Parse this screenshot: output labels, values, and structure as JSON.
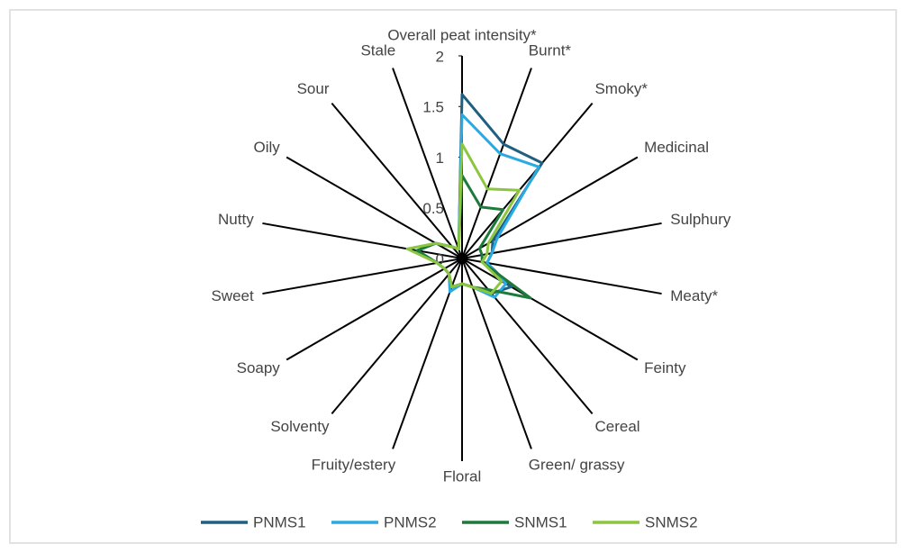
{
  "chart_data": {
    "type": "radar",
    "categories": [
      "Overall peat intensity*",
      "Burnt*",
      "Smoky*",
      "Medicinal",
      "Sulphury",
      "Meaty*",
      "Feinty",
      "Cereal",
      "Green/ grassy",
      "Floral",
      "Fruity/estery",
      "Solventy",
      "Soapy",
      "Sweet",
      "Nutty",
      "Oily",
      "Sour",
      "Stale"
    ],
    "rlim": [
      0,
      2
    ],
    "rticks": [
      0,
      0.5,
      1,
      1.5,
      2
    ],
    "legend": "bottom",
    "series": [
      {
        "name": "PNMS1",
        "color": "#1f5f80",
        "values": [
          1.62,
          1.2,
          1.23,
          0.35,
          0.3,
          0.25,
          0.56,
          0.45,
          0.3,
          0.25,
          0.3,
          0.2,
          0.2,
          0.25,
          0.45,
          0.3,
          0.15,
          0.1
        ]
      },
      {
        "name": "PNMS2",
        "color": "#2aaae2",
        "values": [
          1.42,
          1.1,
          1.18,
          0.4,
          0.3,
          0.25,
          0.5,
          0.5,
          0.3,
          0.25,
          0.35,
          0.2,
          0.2,
          0.25,
          0.45,
          0.3,
          0.15,
          0.1
        ]
      },
      {
        "name": "SNMS1",
        "color": "#1e7a3a",
        "values": [
          0.82,
          0.54,
          0.63,
          0.2,
          0.2,
          0.2,
          0.78,
          0.4,
          0.3,
          0.25,
          0.3,
          0.2,
          0.2,
          0.25,
          0.45,
          0.3,
          0.15,
          0.1
        ]
      },
      {
        "name": "SNMS2",
        "color": "#8cc63f",
        "values": [
          1.13,
          0.73,
          0.88,
          0.3,
          0.25,
          0.2,
          0.45,
          0.45,
          0.3,
          0.25,
          0.3,
          0.2,
          0.2,
          0.25,
          0.55,
          0.3,
          0.15,
          0.1
        ]
      }
    ]
  }
}
